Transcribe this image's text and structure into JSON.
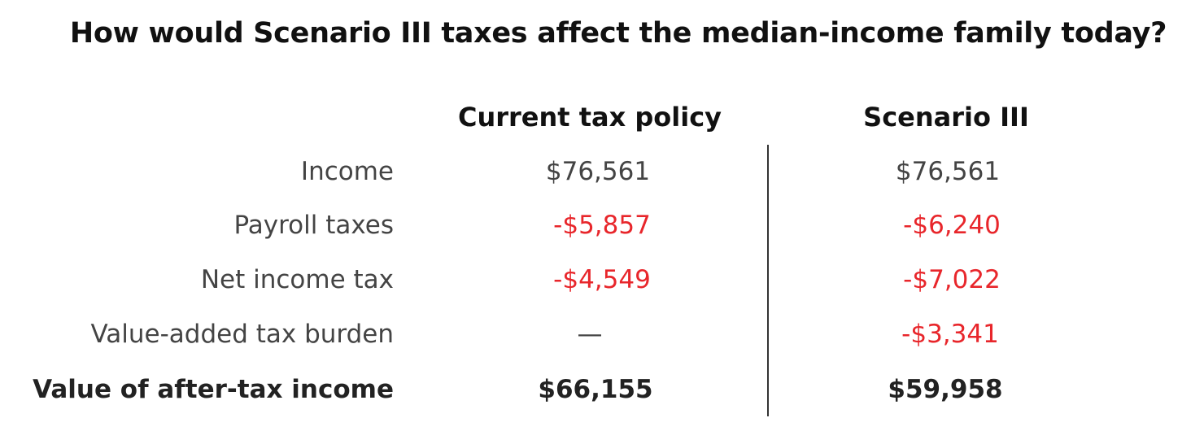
{
  "header": {
    "title": "How would Scenario III taxes affect the median-income family today?"
  },
  "table": {
    "columns": [
      "Current tax policy",
      "Scenario III"
    ],
    "rows": [
      [
        "Income",
        "$76,561",
        "$76,561"
      ],
      [
        "Payroll taxes",
        "-$5,857",
        "-$6,240"
      ],
      [
        "Net income tax",
        "-$4,549",
        "-$7,022"
      ],
      [
        "Value-added tax burden",
        "—",
        "-$3,341"
      ],
      [
        "Value of after-tax income",
        "$66,155",
        "$59,958"
      ]
    ]
  }
}
